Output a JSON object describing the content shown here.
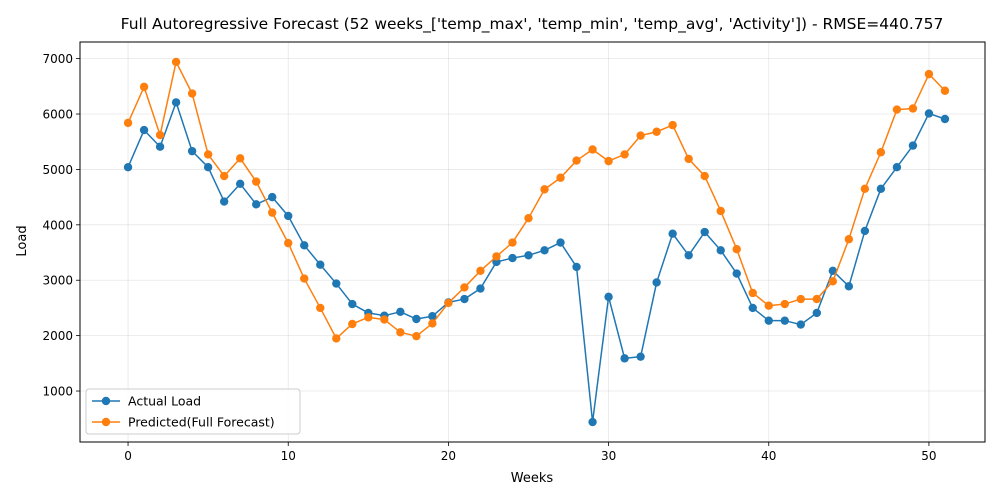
{
  "chart_data": {
    "type": "line",
    "title": "Full Autoregressive Forecast (52 weeks_['temp_max', 'temp_min', 'temp_avg', 'Activity']) - RMSE=440.757",
    "xlabel": "Weeks",
    "ylabel": "Load",
    "xlim": [
      -3,
      53.5
    ],
    "ylim": [
      80,
      7300
    ],
    "xticks": [
      0,
      10,
      20,
      30,
      40,
      50
    ],
    "yticks": [
      1000,
      2000,
      3000,
      4000,
      5000,
      6000,
      7000
    ],
    "grid": true,
    "legend_position": "lower-left",
    "series": [
      {
        "name": "Actual Load",
        "color": "#1f77b4",
        "values": [
          5040,
          5710,
          5410,
          6210,
          5330,
          5040,
          4420,
          4740,
          4370,
          4500,
          4160,
          3630,
          3280,
          2940,
          2570,
          2410,
          2360,
          2430,
          2300,
          2350,
          2600,
          2660,
          2850,
          3330,
          3400,
          3450,
          3540,
          3680,
          3240,
          440,
          2700,
          1590,
          1620,
          2960,
          3840,
          3450,
          3870,
          3540,
          3120,
          2500,
          2270,
          2270,
          2200,
          2410,
          3170,
          2890,
          3890,
          4650,
          5040,
          5430,
          6010,
          5910
        ]
      },
      {
        "name": "Predicted(Full Forecast)",
        "color": "#ff7f0e",
        "values": [
          5840,
          6490,
          5620,
          6940,
          6370,
          5270,
          4880,
          5200,
          4780,
          4220,
          3670,
          3030,
          2500,
          1950,
          2210,
          2330,
          2290,
          2060,
          1990,
          2220,
          2590,
          2870,
          3170,
          3430,
          3680,
          4120,
          4640,
          4850,
          5160,
          5360,
          5150,
          5270,
          5610,
          5680,
          5800,
          5190,
          4880,
          4250,
          3560,
          2770,
          2540,
          2570,
          2660,
          2660,
          2980,
          3740,
          4650,
          5310,
          6080,
          6100,
          6720,
          6420
        ]
      }
    ]
  }
}
